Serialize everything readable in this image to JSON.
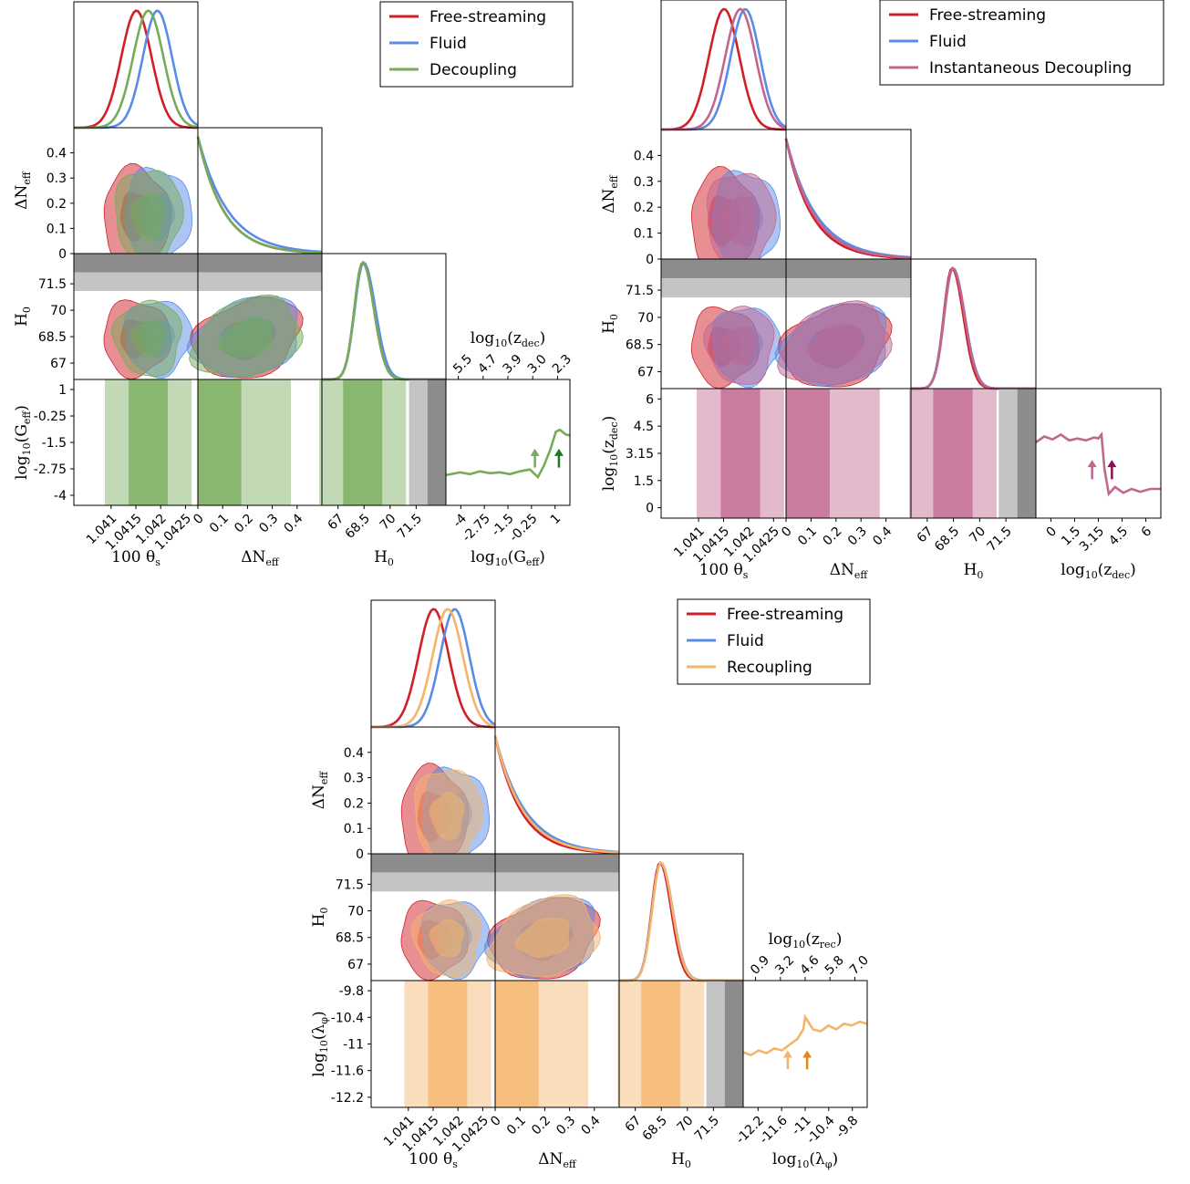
{
  "colors": {
    "free_streaming": "#d11f2a",
    "fluid": "#5a8ce6",
    "decoupling": "#76ab5a",
    "decoupling_dark": "#1e7a1e",
    "inst_decoupling": "#c0678f",
    "inst_decoupling_dark": "#8b0f5a",
    "recoupling": "#f4b46a",
    "recoupling_dark": "#e28a15",
    "band_dark": "#8c8c8c",
    "band_light": "#c4c4c4"
  },
  "chart_data": [
    {
      "id": "decoupling",
      "type": "corner",
      "legend": {
        "position": "top-right",
        "entries": [
          "Free-streaming",
          "Fluid",
          "Decoupling"
        ]
      },
      "axes": {
        "theta": {
          "label": "100 θ_s",
          "label_main": "100 θ",
          "label_sub": "s",
          "range": [
            1.0405,
            1.0428
          ],
          "ticks": [
            "1.041",
            "1.0415",
            "1.042",
            "1.0425"
          ]
        },
        "neff": {
          "label": "ΔN_eff",
          "label_main": "ΔN",
          "label_sub": "eff",
          "range": [
            0,
            0.5
          ],
          "ticks": [
            "0",
            "0.1",
            "0.2",
            "0.3",
            "0.4"
          ]
        },
        "h0": {
          "label": "H_0",
          "label_main": "H",
          "label_sub": "0",
          "range": [
            66,
            73
          ],
          "ticks": [
            "67",
            "68.5",
            "70",
            "71.5"
          ]
        },
        "extra": {
          "label": "log10(G_eff)",
          "label_main": "log",
          "label_sub": "10",
          "label_arg": "(G",
          "label_argsub": "eff",
          "range": [
            -4.7,
            1.5
          ],
          "ticks": [
            "-4",
            "-2.75",
            "-1.5",
            "-0.25",
            "1"
          ],
          "left_ticks": [
            "1",
            "-0.25",
            "-1.5",
            "-2.75",
            "-4"
          ]
        },
        "top_axis": {
          "label": "log10(z_dec)",
          "label_main": "log",
          "label_sub": "10",
          "label_arg": "(z",
          "label_argsub": "dec",
          "ticks": [
            "5.5",
            "4.7",
            "3.9",
            "3.0",
            "2.3"
          ]
        }
      },
      "h0_bands": {
        "dark": [
          71.96,
          73.0
        ],
        "light": [
          70.92,
          71.96
        ]
      },
      "series": [
        {
          "name": "Free-streaming",
          "theta_mean": 1.04166,
          "theta_sd": 0.00028,
          "neff_scale": 0.11,
          "h0_mean": 68.3,
          "h0_sd": 0.55
        },
        {
          "name": "Fluid",
          "theta_mean": 1.04205,
          "theta_sd": 0.00027,
          "neff_scale": 0.13,
          "h0_mean": 68.35,
          "h0_sd": 0.58
        },
        {
          "name": "Decoupling",
          "theta_mean": 1.04188,
          "theta_sd": 0.00028,
          "neff_scale": 0.11,
          "h0_mean": 68.3,
          "h0_sd": 0.55
        }
      ],
      "extra_posterior": {
        "x": [
          -4.7,
          -4.0,
          -3.5,
          -3.0,
          -2.5,
          -2.0,
          -1.5,
          -1.0,
          -0.5,
          -0.1,
          0.2,
          0.5,
          0.8,
          1.0,
          1.3,
          1.5
        ],
        "y": [
          0.32,
          0.35,
          0.33,
          0.36,
          0.34,
          0.35,
          0.33,
          0.36,
          0.38,
          0.3,
          0.42,
          0.58,
          0.78,
          0.8,
          0.75,
          0.74
        ]
      },
      "arrows": [
        {
          "x": -0.25,
          "shade": "light"
        },
        {
          "x": 0.95,
          "shade": "dark"
        }
      ]
    },
    {
      "id": "instantaneous",
      "type": "corner",
      "legend": {
        "position": "top-right",
        "entries": [
          "Free-streaming",
          "Fluid",
          "Instantaneous Decoupling"
        ]
      },
      "axes": {
        "theta": {
          "label": "100 θ_s",
          "label_main": "100 θ",
          "label_sub": "s",
          "range": [
            1.0405,
            1.0428
          ],
          "ticks": [
            "1.041",
            "1.0415",
            "1.042",
            "1.0425"
          ]
        },
        "neff": {
          "label": "ΔN_eff",
          "label_main": "ΔN",
          "label_sub": "eff",
          "range": [
            0,
            0.5
          ],
          "ticks": [
            "0",
            "0.1",
            "0.2",
            "0.3",
            "0.4"
          ]
        },
        "h0": {
          "label": "H_0",
          "label_main": "H",
          "label_sub": "0",
          "range": [
            66,
            73
          ],
          "ticks": [
            "67",
            "68.5",
            "70",
            "71.5"
          ]
        },
        "extra": {
          "label": "log10(z_dec)",
          "label_main": "log",
          "label_sub": "10",
          "label_arg": "(z",
          "label_argsub": "dec",
          "range": [
            0,
            6
          ],
          "ticks": [
            "0",
            "1.5",
            "3.15",
            "4.5",
            "6"
          ],
          "left_ticks": [
            "6",
            "4.5",
            "3.15",
            "1.5",
            "0"
          ]
        }
      },
      "h0_bands": {
        "dark": [
          71.96,
          73.0
        ],
        "light": [
          70.92,
          71.96
        ]
      },
      "series": [
        {
          "name": "Free-streaming",
          "theta_mean": 1.04166,
          "theta_sd": 0.00028,
          "neff_scale": 0.11,
          "h0_mean": 68.3,
          "h0_sd": 0.55
        },
        {
          "name": "Fluid",
          "theta_mean": 1.04205,
          "theta_sd": 0.00027,
          "neff_scale": 0.13,
          "h0_mean": 68.35,
          "h0_sd": 0.58
        },
        {
          "name": "Instantaneous Decoupling",
          "theta_mean": 1.04196,
          "theta_sd": 0.00028,
          "neff_scale": 0.12,
          "h0_mean": 68.35,
          "h0_sd": 0.57
        }
      ],
      "extra_posterior": {
        "x": [
          0,
          0.4,
          0.8,
          1.2,
          1.6,
          2.0,
          2.4,
          2.8,
          3.0,
          3.15,
          3.3,
          3.5,
          3.8,
          4.2,
          4.6,
          5.0,
          5.5,
          6.0
        ],
        "y": [
          0.78,
          0.84,
          0.81,
          0.86,
          0.8,
          0.82,
          0.8,
          0.83,
          0.82,
          0.86,
          0.5,
          0.25,
          0.32,
          0.26,
          0.3,
          0.27,
          0.3,
          0.3
        ]
      },
      "arrows": [
        {
          "x": 2.7,
          "shade": "light"
        },
        {
          "x": 3.65,
          "shade": "dark"
        }
      ]
    },
    {
      "id": "recoupling",
      "type": "corner",
      "legend": {
        "position": "top-right",
        "entries": [
          "Free-streaming",
          "Fluid",
          "Recoupling"
        ]
      },
      "axes": {
        "theta": {
          "label": "100 θ_s",
          "label_main": "100 θ",
          "label_sub": "s",
          "range": [
            1.0405,
            1.0428
          ],
          "ticks": [
            "1.041",
            "1.0415",
            "1.042",
            "1.0425"
          ]
        },
        "neff": {
          "label": "ΔN_eff",
          "label_main": "ΔN",
          "label_sub": "eff",
          "range": [
            0,
            0.5
          ],
          "ticks": [
            "0",
            "0.1",
            "0.2",
            "0.3",
            "0.4"
          ]
        },
        "h0": {
          "label": "H_0",
          "label_main": "H",
          "label_sub": "0",
          "range": [
            66,
            73
          ],
          "ticks": [
            "67",
            "68.5",
            "70",
            "71.5"
          ]
        },
        "extra": {
          "label": "log10(λ_φ)",
          "label_main": "log",
          "label_sub": "10",
          "label_arg": "(λ",
          "label_argsub": "φ",
          "range": [
            -12.6,
            -9.4
          ],
          "ticks": [
            "-12.2",
            "-11.6",
            "-11",
            "-10.4",
            "-9.8"
          ],
          "left_ticks": [
            "-9.8",
            "-10.4",
            "-11",
            "-11.6",
            "-12.2"
          ]
        },
        "top_axis": {
          "label": "log10(z_rec)",
          "label_main": "log",
          "label_sub": "10",
          "label_arg": "(z",
          "label_argsub": "rec",
          "ticks": [
            "0.9",
            "3.2",
            "4.6",
            "5.8",
            "7.0"
          ]
        }
      },
      "h0_bands": {
        "dark": [
          71.96,
          73.0
        ],
        "light": [
          70.92,
          71.96
        ]
      },
      "series": [
        {
          "name": "Free-streaming",
          "theta_mean": 1.04166,
          "theta_sd": 0.00028,
          "neff_scale": 0.11,
          "h0_mean": 68.3,
          "h0_sd": 0.55
        },
        {
          "name": "Fluid",
          "theta_mean": 1.04205,
          "theta_sd": 0.00027,
          "neff_scale": 0.13,
          "h0_mean": 68.35,
          "h0_sd": 0.58
        },
        {
          "name": "Recoupling",
          "theta_mean": 1.04192,
          "theta_sd": 0.00028,
          "neff_scale": 0.12,
          "h0_mean": 68.35,
          "h0_sd": 0.57
        }
      ],
      "extra_posterior": {
        "x": [
          -12.6,
          -12.4,
          -12.2,
          -12.0,
          -11.8,
          -11.6,
          -11.4,
          -11.2,
          -11.05,
          -11.0,
          -10.8,
          -10.6,
          -10.4,
          -10.2,
          -10.0,
          -9.8,
          -9.6,
          -9.4
        ],
        "y": [
          0.58,
          0.55,
          0.6,
          0.57,
          0.62,
          0.6,
          0.66,
          0.72,
          0.82,
          0.95,
          0.82,
          0.8,
          0.86,
          0.82,
          0.88,
          0.86,
          0.9,
          0.88
        ]
      },
      "arrows": [
        {
          "x": -11.45,
          "shade": "light"
        },
        {
          "x": -10.95,
          "shade": "dark"
        }
      ]
    }
  ]
}
